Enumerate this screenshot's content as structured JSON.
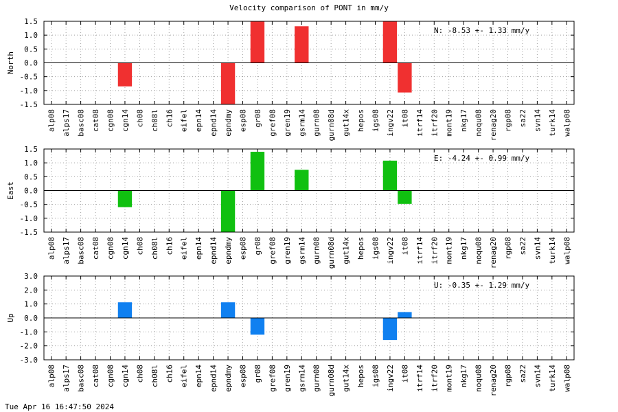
{
  "title": "Velocity comparison of PONT in mm/y",
  "timestamp": "Tue Apr 16 16:47:50 2024",
  "chart_data": [
    {
      "type": "bar",
      "ylabel": "North",
      "color": "#f03030",
      "ylim": [
        -1.5,
        1.5
      ],
      "yticks": [
        "-1.5",
        "-1.0",
        "-0.5",
        "0.0",
        "0.5",
        "1.0",
        "1.5"
      ],
      "annotation": "N:  -8.53 +-  1.33 mm/y",
      "grid": true,
      "categories": [
        "alp08",
        "alps17",
        "basc08",
        "cat08",
        "cgn08",
        "cgn14",
        "ch08",
        "ch08l",
        "ch16",
        "eifel",
        "epn14",
        "epnd14",
        "epndmy",
        "esp08",
        "gr08",
        "gref08",
        "gren19",
        "gsrm14",
        "gurn08",
        "gurn08d",
        "gut14x",
        "hepos",
        "igs08",
        "ingv22",
        "it08",
        "itrf14",
        "itrf20",
        "mont19",
        "nkg17",
        "noqu08",
        "renag20",
        "rgp08",
        "sa22",
        "svn14",
        "turk14",
        "walp08"
      ],
      "values": [
        0,
        0,
        0,
        0,
        0,
        -0.85,
        0,
        0,
        0,
        0,
        0,
        0,
        -1.55,
        0,
        1.55,
        0,
        0,
        1.32,
        0,
        0,
        0,
        0,
        0,
        1.55,
        -1.07,
        0,
        0,
        0,
        0,
        0,
        0,
        0,
        0,
        0,
        0,
        0
      ]
    },
    {
      "type": "bar",
      "ylabel": "East",
      "color": "#10c010",
      "ylim": [
        -1.5,
        1.5
      ],
      "yticks": [
        "-1.5",
        "-1.0",
        "-0.5",
        "0.0",
        "0.5",
        "1.0",
        "1.5"
      ],
      "annotation": "E:  -4.24 +-  0.99 mm/y",
      "grid": true,
      "categories": [
        "alp08",
        "alps17",
        "basc08",
        "cat08",
        "cgn08",
        "cgn14",
        "ch08",
        "ch08l",
        "ch16",
        "eifel",
        "epn14",
        "epnd14",
        "epndmy",
        "esp08",
        "gr08",
        "gref08",
        "gren19",
        "gsrm14",
        "gurn08",
        "gurn08d",
        "gut14x",
        "hepos",
        "igs08",
        "ingv22",
        "it08",
        "itrf14",
        "itrf20",
        "mont19",
        "nkg17",
        "noqu08",
        "renag20",
        "rgp08",
        "sa22",
        "svn14",
        "turk14",
        "walp08"
      ],
      "values": [
        0,
        0,
        0,
        0,
        0,
        -0.6,
        0,
        0,
        0,
        0,
        0,
        0,
        -1.55,
        0,
        1.4,
        0,
        0,
        0.75,
        0,
        0,
        0,
        0,
        0,
        1.08,
        -0.48,
        0,
        0,
        0,
        0,
        0,
        0,
        0,
        0,
        0,
        0,
        0
      ]
    },
    {
      "type": "bar",
      "ylabel": "Up",
      "color": "#1080f0",
      "ylim": [
        -3.0,
        3.0
      ],
      "yticks": [
        "-3.0",
        "-2.0",
        "-1.0",
        "0.0",
        "1.0",
        "2.0",
        "3.0"
      ],
      "annotation": "U:  -0.35 +-  1.29 mm/y",
      "grid": true,
      "categories": [
        "alp08",
        "alps17",
        "basc08",
        "cat08",
        "cgn08",
        "cgn14",
        "ch08",
        "ch08l",
        "ch16",
        "eifel",
        "epn14",
        "epnd14",
        "epndmy",
        "esp08",
        "gr08",
        "gref08",
        "gren19",
        "gsrm14",
        "gurn08",
        "gurn08d",
        "gut14x",
        "hepos",
        "igs08",
        "ingv22",
        "it08",
        "itrf14",
        "itrf20",
        "mont19",
        "nkg17",
        "noqu08",
        "renag20",
        "rgp08",
        "sa22",
        "svn14",
        "turk14",
        "walp08"
      ],
      "values": [
        0,
        0,
        0,
        0,
        0,
        1.12,
        0,
        0,
        0,
        0,
        0,
        0,
        1.12,
        0,
        -1.2,
        0,
        0,
        0,
        0,
        0,
        0,
        0,
        0,
        -1.58,
        0.42,
        0,
        0,
        0,
        0,
        0,
        0,
        0,
        0,
        0,
        0,
        0
      ]
    }
  ]
}
